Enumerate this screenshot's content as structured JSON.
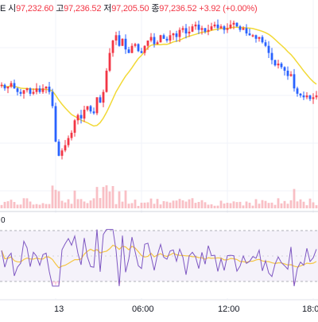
{
  "legend": {
    "open_label": "시",
    "open_value": "97,232.60",
    "high_label": "고",
    "high_value": "97,236.52",
    "low_label": "저",
    "low_value": "97,205.50",
    "close_label": "종",
    "close_value": "97,236.52",
    "change": "+3.92 (+0.00%)",
    "clipped_prefix": "E"
  },
  "colors": {
    "up": "#f23645",
    "down": "#2962ff",
    "ma": "#f2d936",
    "rsi_line": "#7e57c2",
    "rsi_ma": "#f5c542",
    "rsi_band": "#ede7f6",
    "volume": "#f7a9b1",
    "grid": "#f0f3fa",
    "axis_text": "#131722"
  },
  "time_axis": {
    "labels": [
      "13",
      "06:00",
      "12:00",
      "18:0"
    ]
  },
  "rsi_pane": {
    "label_clipped": "0"
  },
  "chart_data": {
    "type": "candlestick",
    "price_scale": "not shown (right price axis cropped)",
    "grid": true,
    "candle_closes_approx": [
      0.62,
      0.6,
      0.61,
      0.63,
      0.6,
      0.58,
      0.57,
      0.59,
      0.6,
      0.57,
      0.58,
      0.6,
      0.58,
      0.6,
      0.61,
      0.58,
      0.5,
      0.3,
      0.22,
      0.25,
      0.28,
      0.32,
      0.35,
      0.42,
      0.45,
      0.43,
      0.48,
      0.5,
      0.47,
      0.46,
      0.55,
      0.52,
      0.58,
      0.7,
      0.8,
      0.87,
      0.9,
      0.84,
      0.88,
      0.82,
      0.8,
      0.84,
      0.85,
      0.81,
      0.8,
      0.84,
      0.87,
      0.89,
      0.85,
      0.86,
      0.9,
      0.88,
      0.87,
      0.9,
      0.91,
      0.89,
      0.93,
      0.94,
      0.91,
      0.92,
      0.95,
      0.96,
      0.93,
      0.94,
      0.92,
      0.93,
      0.95,
      0.96,
      0.94,
      0.95,
      0.93,
      0.94,
      0.96,
      0.97,
      0.95,
      0.93,
      0.94,
      0.91,
      0.9,
      0.9,
      0.88,
      0.89,
      0.86,
      0.84,
      0.8,
      0.76,
      0.73,
      0.74,
      0.72,
      0.7,
      0.67,
      0.68,
      0.6,
      0.57,
      0.56,
      0.55,
      0.56,
      0.54,
      0.55,
      0.56
    ]
  }
}
